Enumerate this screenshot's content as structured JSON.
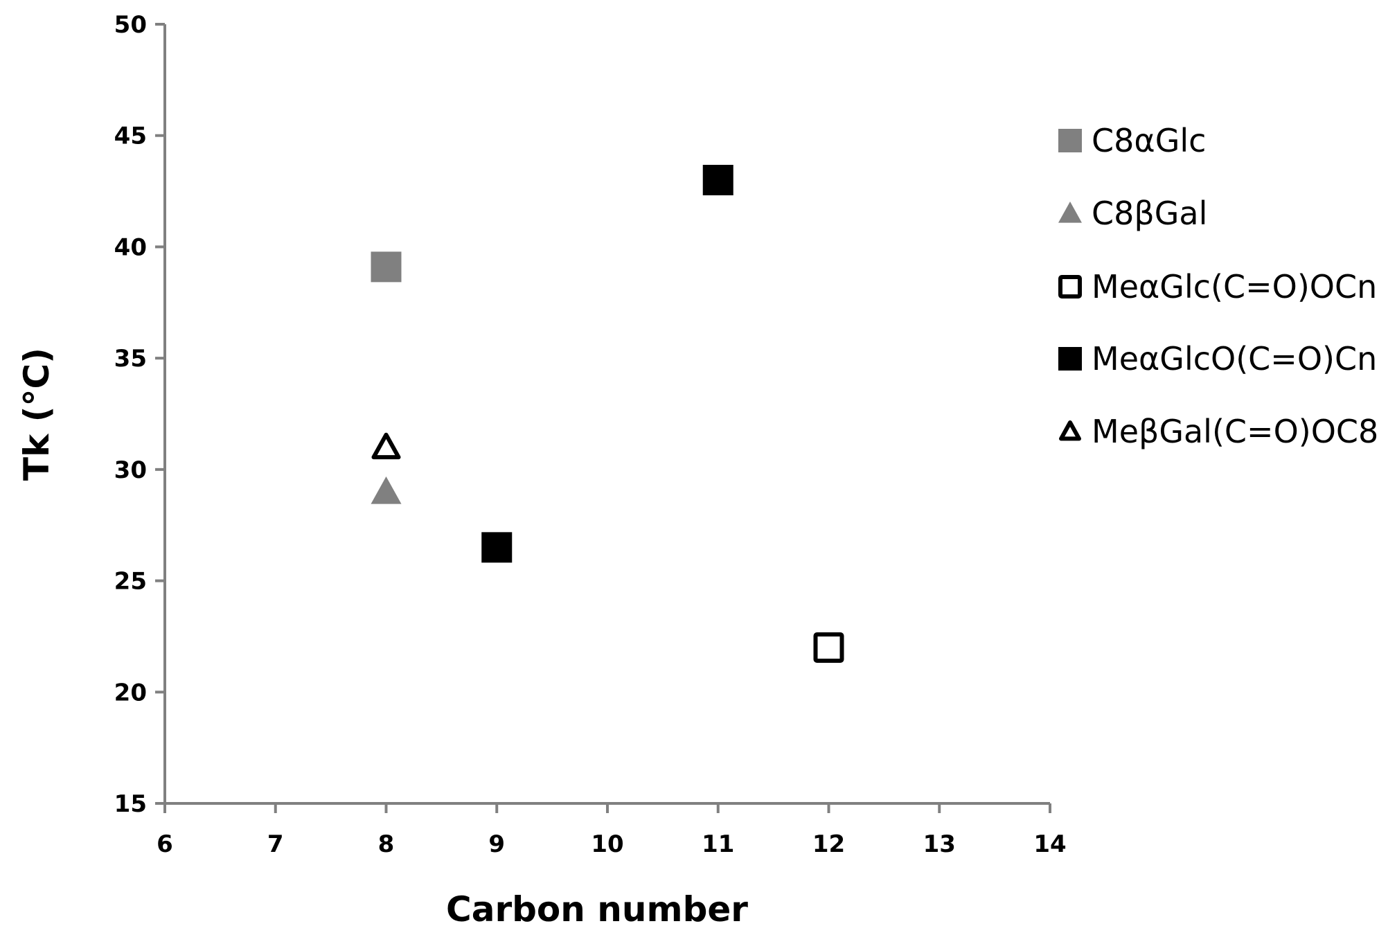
{
  "chart_data": {
    "type": "scatter",
    "title": "",
    "xlabel": "Carbon number",
    "ylabel": "Tk (°C)",
    "xlim": [
      6,
      14
    ],
    "ylim": [
      15,
      50
    ],
    "xticks": [
      "6",
      "7",
      "8",
      "9",
      "10",
      "11",
      "12",
      "13",
      "14"
    ],
    "yticks": [
      "15",
      "20",
      "25",
      "30",
      "35",
      "40",
      "45",
      "50"
    ],
    "grid": false,
    "legend_position": "right",
    "series": [
      {
        "name": "C8αGlc",
        "marker": "square",
        "filled": true,
        "color": "#808080",
        "points": [
          [
            8,
            39.1
          ]
        ]
      },
      {
        "name": "C8βGal",
        "marker": "triangle",
        "filled": true,
        "color": "#808080",
        "points": [
          [
            8,
            29
          ]
        ]
      },
      {
        "name": "MeαGlc(C=O)OCn",
        "marker": "square",
        "filled": false,
        "color": "#000000",
        "points": [
          [
            12,
            22
          ]
        ]
      },
      {
        "name": "MeαGlcO(C=O)Cn",
        "marker": "square",
        "filled": true,
        "color": "#000000",
        "points": [
          [
            9,
            26.5
          ],
          [
            11,
            43
          ]
        ]
      },
      {
        "name": "MeβGal(C=O)OC8",
        "marker": "triangle",
        "filled": false,
        "color": "#000000",
        "points": [
          [
            8,
            31
          ]
        ]
      }
    ],
    "axis_color": "#808080"
  }
}
